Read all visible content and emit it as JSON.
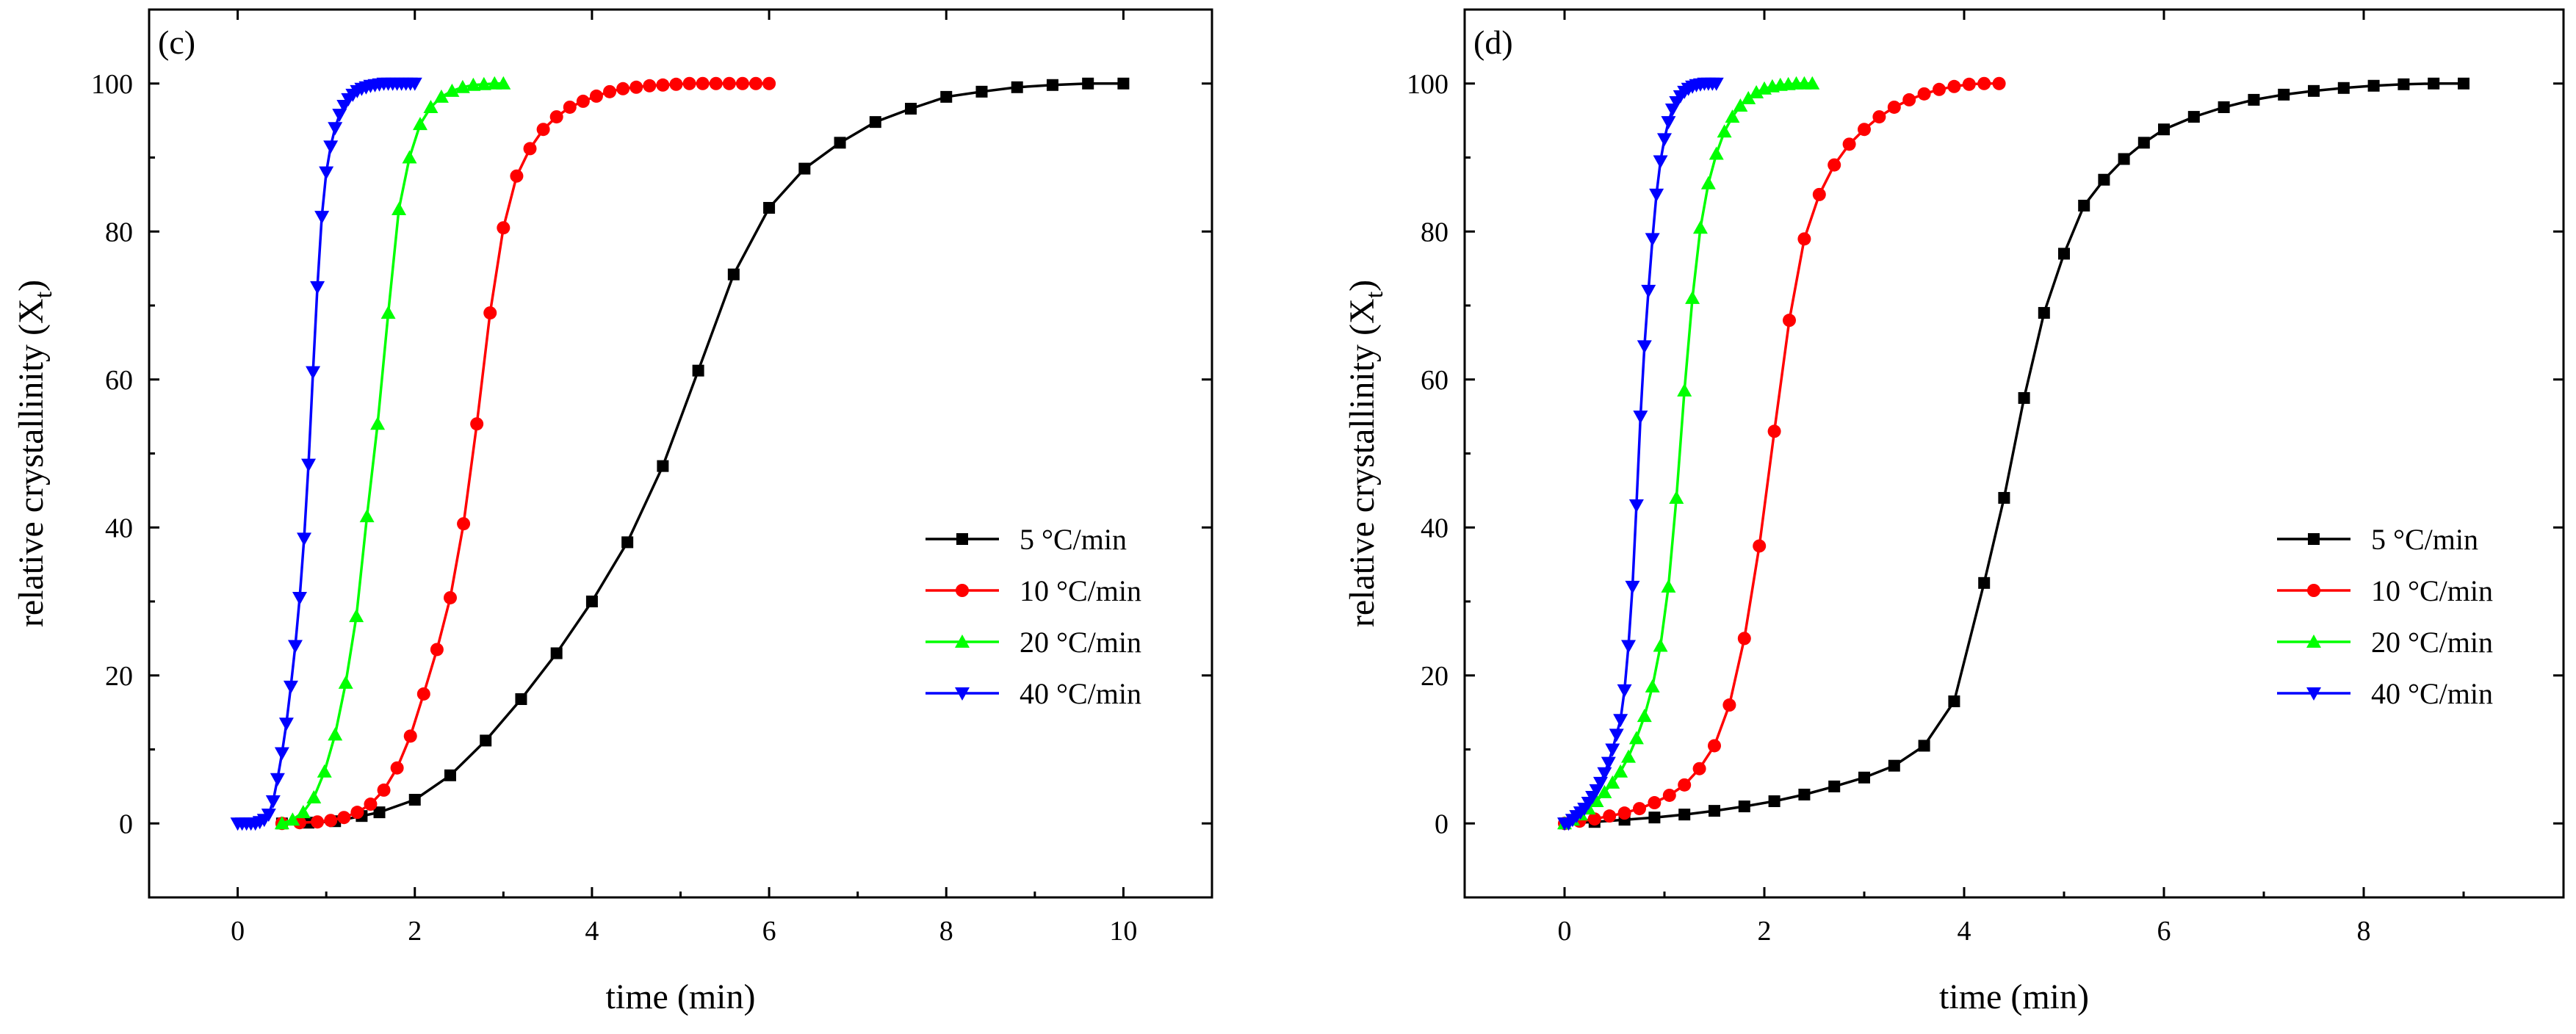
{
  "chart_data": [
    {
      "type": "line",
      "panel_label": "(c)",
      "xlabel": "time (min)",
      "ylabel": "relative  crystallinity (X",
      "ylabel_sub": "t",
      "ylabel_close": ")",
      "xlim": [
        -1,
        11
      ],
      "ylim": [
        -10,
        110
      ],
      "xticks": [
        0,
        2,
        4,
        6,
        8,
        10
      ],
      "yticks": [
        0,
        20,
        40,
        60,
        80,
        100
      ],
      "legend_position": "bottom-right",
      "series": [
        {
          "name": "5 °C/min",
          "color": "#000000",
          "marker": "square",
          "x": [
            0.5,
            0.8,
            1.1,
            1.4,
            1.6,
            2.0,
            2.4,
            2.8,
            3.2,
            3.6,
            4.0,
            4.4,
            4.8,
            5.2,
            5.6,
            6.0,
            6.4,
            6.8,
            7.2,
            7.6,
            8.0,
            8.4,
            8.8,
            9.2,
            9.6,
            10.0
          ],
          "y": [
            0,
            0.1,
            0.3,
            1.0,
            1.5,
            3.2,
            6.5,
            11.2,
            16.8,
            23.0,
            30.0,
            38.0,
            48.3,
            61.2,
            74.2,
            83.2,
            88.5,
            92.0,
            94.8,
            96.6,
            98.2,
            98.9,
            99.5,
            99.8,
            100.0,
            100.0
          ]
        },
        {
          "name": "10 °C/min",
          "color": "#ff0000",
          "marker": "circle",
          "x": [
            0.5,
            0.7,
            0.9,
            1.05,
            1.2,
            1.35,
            1.5,
            1.65,
            1.8,
            1.95,
            2.1,
            2.25,
            2.4,
            2.55,
            2.7,
            2.85,
            3.0,
            3.15,
            3.3,
            3.45,
            3.6,
            3.75,
            3.9,
            4.05,
            4.2,
            4.35,
            4.5,
            4.65,
            4.8,
            4.95,
            5.1,
            5.25,
            5.4,
            5.55,
            5.7,
            5.85,
            6.0
          ],
          "y": [
            0,
            0.1,
            0.2,
            0.4,
            0.8,
            1.5,
            2.6,
            4.5,
            7.5,
            11.8,
            17.5,
            23.5,
            30.5,
            40.5,
            54.0,
            69.0,
            80.5,
            87.5,
            91.2,
            93.8,
            95.5,
            96.8,
            97.6,
            98.3,
            98.9,
            99.3,
            99.5,
            99.7,
            99.8,
            99.9,
            100.0,
            100.0,
            100.0,
            100.0,
            100.0,
            100.0,
            100.0
          ]
        },
        {
          "name": "20 °C/min",
          "color": "#00ff00",
          "marker": "triangle-up",
          "x": [
            0.5,
            0.62,
            0.74,
            0.86,
            0.98,
            1.1,
            1.22,
            1.34,
            1.46,
            1.58,
            1.7,
            1.82,
            1.94,
            2.06,
            2.18,
            2.3,
            2.42,
            2.54,
            2.66,
            2.78,
            2.9,
            3.0
          ],
          "y": [
            0,
            0.5,
            1.5,
            3.5,
            7.0,
            12.0,
            19.0,
            28.0,
            41.5,
            54.0,
            69.0,
            83.0,
            90.0,
            94.5,
            96.8,
            98.2,
            99.0,
            99.5,
            99.8,
            99.9,
            100.0,
            100.0
          ]
        },
        {
          "name": "40 °C/min",
          "color": "#0000ff",
          "marker": "triangle-down",
          "x": [
            0.0,
            0.05,
            0.1,
            0.15,
            0.2,
            0.25,
            0.3,
            0.35,
            0.4,
            0.45,
            0.5,
            0.55,
            0.6,
            0.65,
            0.7,
            0.75,
            0.8,
            0.85,
            0.9,
            0.95,
            1.0,
            1.05,
            1.1,
            1.15,
            1.2,
            1.25,
            1.3,
            1.35,
            1.4,
            1.45,
            1.5,
            1.55,
            1.6,
            1.65,
            1.7,
            1.75,
            1.8,
            1.85,
            1.9,
            1.95,
            2.0
          ],
          "y": [
            0,
            0,
            0,
            0,
            0,
            0.2,
            0.5,
            1.2,
            3.0,
            6.0,
            9.5,
            13.5,
            18.5,
            24.0,
            30.5,
            38.5,
            48.5,
            61.0,
            72.5,
            82.0,
            88.0,
            91.5,
            94.0,
            95.8,
            97.0,
            97.9,
            98.5,
            99.0,
            99.3,
            99.5,
            99.7,
            99.8,
            99.9,
            100.0,
            100.0,
            100.0,
            100.0,
            100.0,
            100.0,
            100.0,
            100.0
          ]
        }
      ]
    },
    {
      "type": "line",
      "panel_label": "(d)",
      "xlabel": "time (min)",
      "ylabel": "relative  crystallinity (X",
      "ylabel_sub": "t",
      "ylabel_close": ")",
      "xlim": [
        -1,
        10
      ],
      "ylim": [
        -10,
        110
      ],
      "xticks": [
        0,
        2,
        4,
        6,
        8
      ],
      "yticks": [
        0,
        20,
        40,
        60,
        80,
        100
      ],
      "legend_position": "bottom-right",
      "series": [
        {
          "name": "5 °C/min",
          "color": "#000000",
          "marker": "square",
          "x": [
            0.0,
            0.3,
            0.6,
            0.9,
            1.2,
            1.5,
            1.8,
            2.1,
            2.4,
            2.7,
            3.0,
            3.3,
            3.6,
            3.9,
            4.2,
            4.4,
            4.6,
            4.8,
            5.0,
            5.2,
            5.4,
            5.6,
            5.8,
            6.0,
            6.3,
            6.6,
            6.9,
            7.2,
            7.5,
            7.8,
            8.1,
            8.4,
            8.7,
            9.0
          ],
          "y": [
            0,
            0.2,
            0.5,
            0.8,
            1.2,
            1.7,
            2.3,
            3.0,
            3.9,
            5.0,
            6.2,
            7.8,
            10.5,
            16.5,
            32.5,
            44.0,
            57.5,
            69.0,
            77.0,
            83.5,
            87.0,
            89.8,
            92.0,
            93.8,
            95.5,
            96.8,
            97.8,
            98.5,
            99.0,
            99.4,
            99.7,
            99.9,
            100.0,
            100.0
          ]
        },
        {
          "name": "10 °C/min",
          "color": "#ff0000",
          "marker": "circle",
          "x": [
            0.0,
            0.15,
            0.3,
            0.45,
            0.6,
            0.75,
            0.9,
            1.05,
            1.2,
            1.35,
            1.5,
            1.65,
            1.8,
            1.95,
            2.1,
            2.25,
            2.4,
            2.55,
            2.7,
            2.85,
            3.0,
            3.15,
            3.3,
            3.45,
            3.6,
            3.75,
            3.9,
            4.05,
            4.2,
            4.35
          ],
          "y": [
            0,
            0.3,
            0.6,
            1.0,
            1.4,
            2.0,
            2.8,
            3.8,
            5.2,
            7.4,
            10.5,
            16.0,
            25.0,
            37.5,
            53.0,
            68.0,
            79.0,
            85.0,
            89.0,
            91.8,
            93.8,
            95.5,
            96.8,
            97.8,
            98.6,
            99.2,
            99.6,
            99.9,
            100.0,
            100.0
          ]
        },
        {
          "name": "20 °C/min",
          "color": "#00ff00",
          "marker": "triangle-up",
          "x": [
            0.0,
            0.08,
            0.16,
            0.24,
            0.32,
            0.4,
            0.48,
            0.56,
            0.64,
            0.72,
            0.8,
            0.88,
            0.96,
            1.04,
            1.12,
            1.2,
            1.28,
            1.36,
            1.44,
            1.52,
            1.6,
            1.68,
            1.76,
            1.84,
            1.92,
            2.0,
            2.08,
            2.16,
            2.24,
            2.32,
            2.4,
            2.48
          ],
          "y": [
            0,
            0.5,
            1.2,
            2.0,
            3.0,
            4.2,
            5.5,
            7.0,
            9.0,
            11.5,
            14.5,
            18.5,
            24.0,
            32.0,
            44.0,
            58.5,
            71.0,
            80.5,
            86.5,
            90.5,
            93.5,
            95.5,
            97.0,
            98.0,
            98.8,
            99.3,
            99.6,
            99.8,
            99.9,
            100.0,
            100.0,
            100.0
          ]
        },
        {
          "name": "40 °C/min",
          "color": "#0000ff",
          "marker": "triangle-down",
          "x": [
            0.0,
            0.04,
            0.08,
            0.12,
            0.16,
            0.2,
            0.24,
            0.28,
            0.32,
            0.36,
            0.4,
            0.44,
            0.48,
            0.52,
            0.56,
            0.6,
            0.64,
            0.68,
            0.72,
            0.76,
            0.8,
            0.84,
            0.88,
            0.92,
            0.96,
            1.0,
            1.04,
            1.08,
            1.12,
            1.16,
            1.2,
            1.24,
            1.28,
            1.32,
            1.36,
            1.4,
            1.44,
            1.48,
            1.52
          ],
          "y": [
            0,
            0,
            0.5,
            1.0,
            1.5,
            2.0,
            2.8,
            3.6,
            4.5,
            5.5,
            6.8,
            8.2,
            10.0,
            12.0,
            14.0,
            18.0,
            24.0,
            32.0,
            43.0,
            55.0,
            64.5,
            72.0,
            79.0,
            85.0,
            89.5,
            92.5,
            94.8,
            96.5,
            97.5,
            98.3,
            98.9,
            99.3,
            99.6,
            99.8,
            99.9,
            100.0,
            100.0,
            100.0,
            100.0
          ]
        }
      ]
    }
  ]
}
